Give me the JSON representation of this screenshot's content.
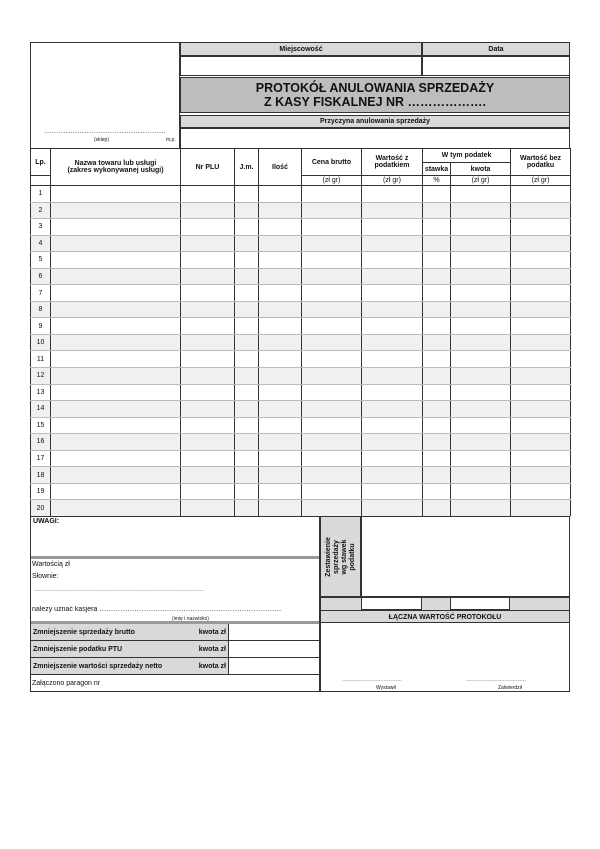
{
  "header": {
    "place_label": "Miejscowość",
    "date_label": "Data",
    "title_line1": "PROTOKÓŁ ANULOWANIA SPRZEDAŻY",
    "title_line2": "Z KASY FISKALNEJ NR ……………….",
    "reason_label": "Przyczyna anulowania sprzedaży",
    "shop_dots": "…………………………………………….",
    "shop_label": "(sklep)",
    "stamp_label": "m.p."
  },
  "table": {
    "columns": {
      "lp": "Lp.",
      "name": "Nazwa towaru lub usługi (zakres wykonywanej usługi)",
      "plu": "Nr PLU",
      "unit": "J.m.",
      "qty": "Ilość",
      "price": "Cena brutto",
      "gross": "Wartość z podatkiem",
      "tax": "W tym podatek",
      "rate": "stawka",
      "amount": "kwota",
      "net": "Wartość bez podatku"
    },
    "units": {
      "price": "(zł gr)",
      "gross": "(zł gr)",
      "rate": "%",
      "amount": "(zł gr)",
      "net": "(zł gr)"
    },
    "rows": [
      "1",
      "2",
      "3",
      "4",
      "5",
      "6",
      "7",
      "8",
      "9",
      "10",
      "11",
      "12",
      "13",
      "14",
      "15",
      "16",
      "17",
      "18",
      "19",
      "20"
    ]
  },
  "footer": {
    "remarks": "UWAGI:",
    "value": "Wartością zł",
    "in_words": "Słownie:",
    "words_dots": "…………………………………………………………………………………………",
    "cashier": "należy uznać kasjera ……………………………………………………………………",
    "cashier_hint": "(imię i nazwisko)",
    "summary_rows": [
      {
        "label": "Zmniejszenie sprzedaży brutto",
        "amount": "kwota zł"
      },
      {
        "label": "Zmniejszenie podatku PTU",
        "amount": "kwota zł"
      },
      {
        "label": "Zmniejszenie wartości sprzedaży netto",
        "amount": "kwota zł"
      }
    ],
    "receipt": "Załączono paragon nr",
    "rates_summary": "Zestawienie sprzedaży wg stawek podatku",
    "total": "ŁĄCZNA WARTOŚĆ PROTOKOŁU",
    "issued_dots": "………………………………",
    "issued": "Wystawił",
    "approved_dots": "………………………………",
    "approved": "Zatwierdził"
  }
}
